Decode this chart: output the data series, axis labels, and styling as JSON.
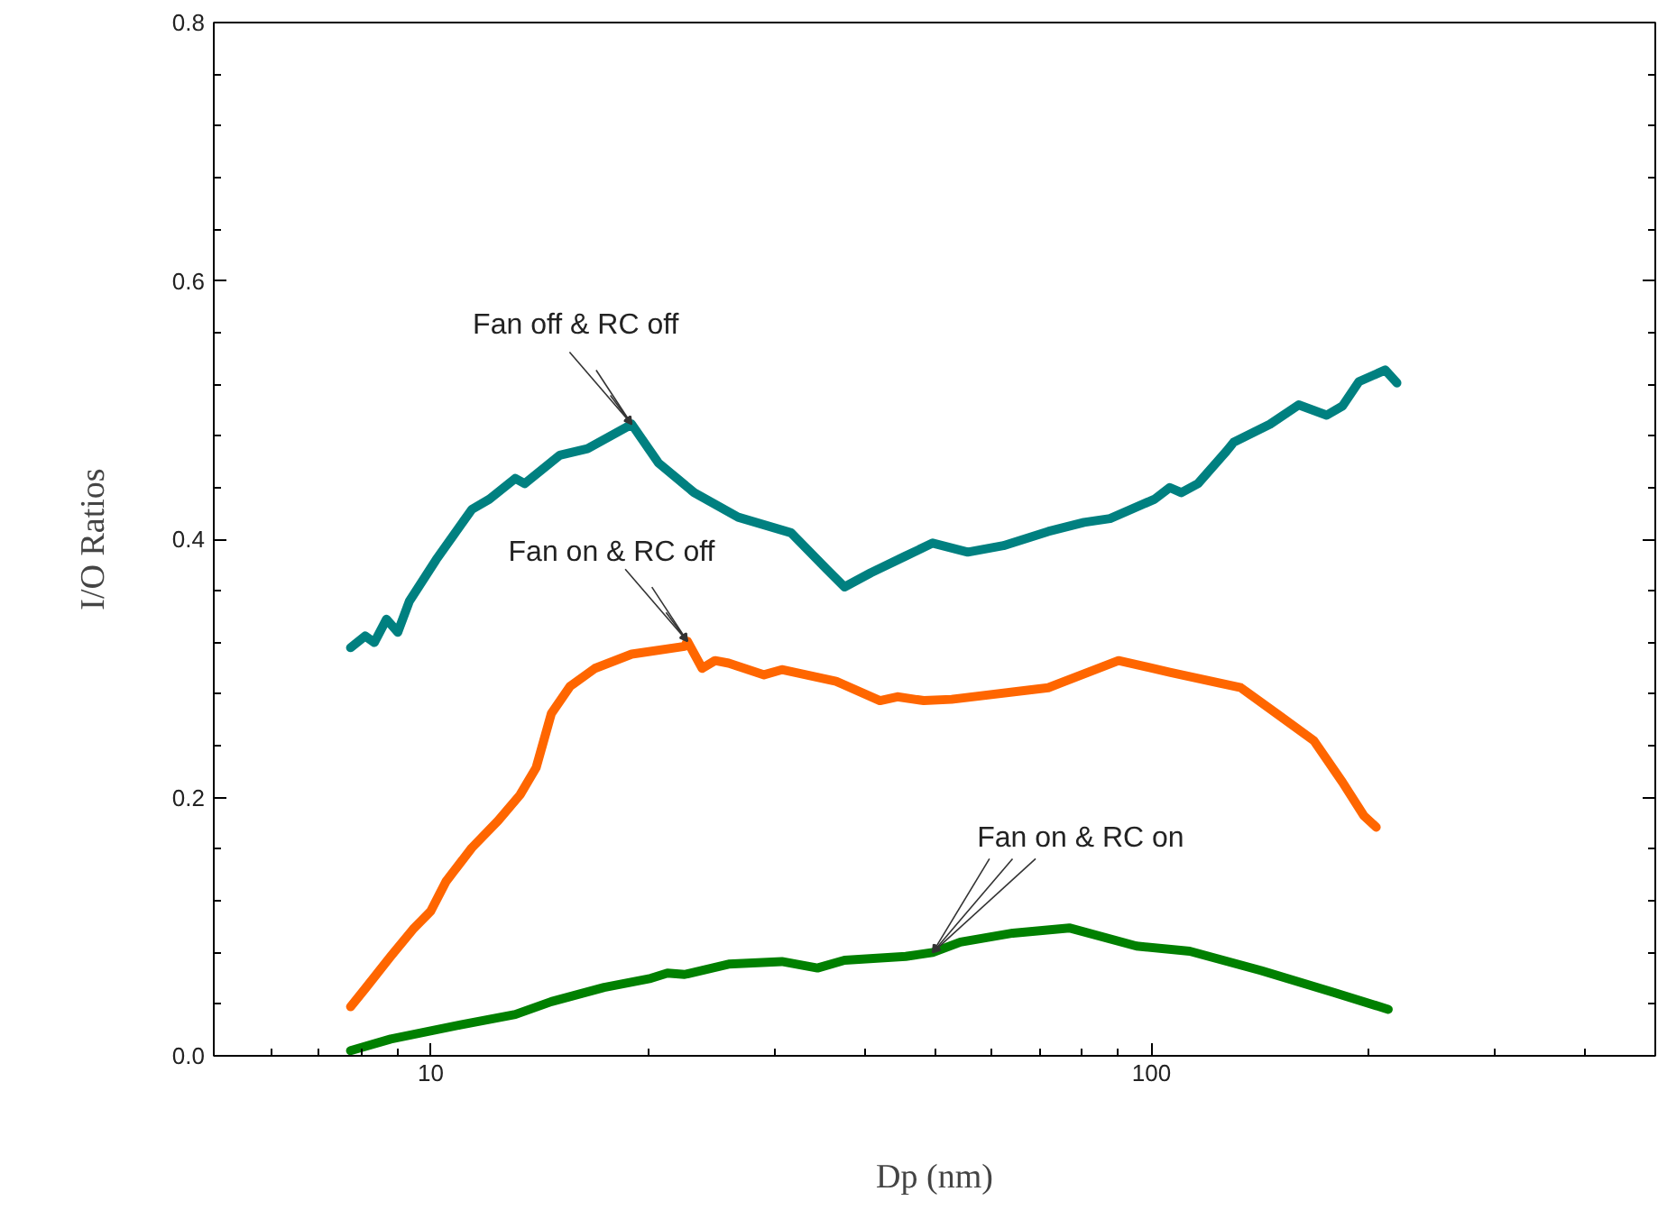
{
  "chart_data": {
    "type": "line",
    "xlabel": "Dp (nm)",
    "ylabel": "I/O Ratios",
    "log": "x",
    "grid": false,
    "marker": "none",
    "line_style": "solid",
    "xlim": [
      5,
      500
    ],
    "xticks": [
      10,
      100
    ],
    "ylim": [
      0,
      0.8
    ],
    "yticks": [
      {
        "value": 0,
        "label": "0.0"
      },
      {
        "value": 0.2,
        "label": "0.2"
      },
      {
        "value": 0.4,
        "label": "0.4"
      },
      {
        "value": 0.6,
        "label": "0.6"
      },
      {
        "value": 0.8,
        "label": "0.8"
      }
    ],
    "series": [
      {
        "color": "#008080",
        "x": [
          7.74,
          8.11,
          8.35,
          8.68,
          9.0,
          9.34,
          10.17,
          11.4,
          12.06,
          13.1,
          13.5,
          15.1,
          16.5,
          19.0,
          20.7,
          23.2,
          26.7,
          31.6,
          35.4,
          37.5,
          40.8,
          45.6,
          49.7,
          55.6,
          62.3,
          71.9,
          80.6,
          87.6,
          101,
          106,
          110,
          116,
          127,
          130,
          146,
          160,
          175,
          184,
          194,
          211,
          219
        ],
        "values": [
          0.316,
          0.325,
          0.32,
          0.338,
          0.328,
          0.352,
          0.384,
          0.423,
          0.431,
          0.447,
          0.443,
          0.465,
          0.47,
          0.489,
          0.459,
          0.436,
          0.417,
          0.405,
          0.377,
          0.363,
          0.374,
          0.387,
          0.397,
          0.39,
          0.395,
          0.406,
          0.413,
          0.416,
          0.431,
          0.44,
          0.436,
          0.443,
          0.468,
          0.475,
          0.489,
          0.504,
          0.496,
          0.503,
          0.522,
          0.531,
          0.521
        ]
      },
      {
        "color": "#ff6600",
        "x": [
          7.74,
          8.11,
          8.8,
          9.45,
          10.0,
          10.5,
          11.4,
          12.4,
          13.3,
          14.0,
          14.7,
          15.6,
          16.9,
          19.0,
          22.5,
          22.7,
          23.8,
          24.8,
          25.9,
          29.0,
          30.7,
          36.5,
          42.0,
          44.4,
          48.3,
          52.8,
          71.9,
          90.0,
          106,
          133,
          150,
          168,
          184,
          197,
          205
        ],
        "values": [
          0.038,
          0.052,
          0.077,
          0.098,
          0.112,
          0.135,
          0.161,
          0.182,
          0.202,
          0.223,
          0.265,
          0.286,
          0.3,
          0.311,
          0.317,
          0.321,
          0.3,
          0.306,
          0.304,
          0.295,
          0.299,
          0.29,
          0.275,
          0.278,
          0.275,
          0.276,
          0.285,
          0.306,
          0.297,
          0.285,
          0.264,
          0.244,
          0.212,
          0.186,
          0.177
        ]
      },
      {
        "color": "#008000",
        "x": [
          7.74,
          8.8,
          11.0,
          13.1,
          14.7,
          17.4,
          20.2,
          21.3,
          22.5,
          25.9,
          30.7,
          34.4,
          37.5,
          45.6,
          49.7,
          54.3,
          64.2,
          76.9,
          95.3,
          113,
          142,
          179,
          213
        ],
        "values": [
          0.004,
          0.013,
          0.024,
          0.032,
          0.042,
          0.053,
          0.06,
          0.064,
          0.063,
          0.071,
          0.073,
          0.068,
          0.074,
          0.077,
          0.08,
          0.088,
          0.095,
          0.099,
          0.085,
          0.081,
          0.066,
          0.049,
          0.036
        ]
      }
    ],
    "annotations": [
      {
        "text": "Fan off & RC off",
        "x": 19.0,
        "y": 0.489
      },
      {
        "text": "Fan on & RC off",
        "x": 22.7,
        "y": 0.321
      },
      {
        "text": "Fan on & RC on",
        "x": 49.7,
        "y": 0.08
      }
    ]
  }
}
